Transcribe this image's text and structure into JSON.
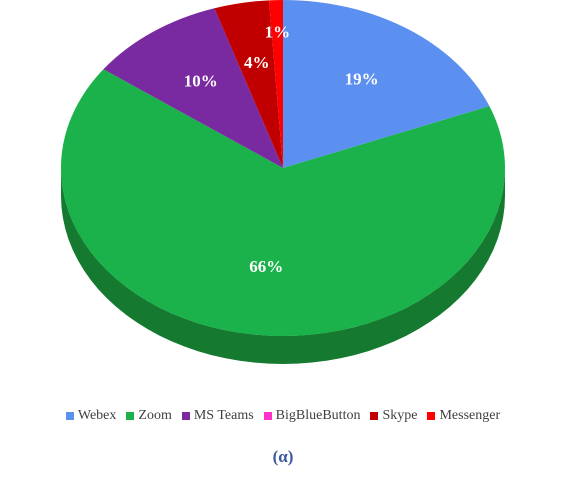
{
  "chart_data": {
    "type": "pie",
    "three_d": true,
    "start_angle_deg": 90,
    "direction": "clockwise",
    "slices": [
      {
        "label": "Webex",
        "value": 19,
        "data_label": "19%",
        "color": "#5b8ff0",
        "dark": "#3f6bc0"
      },
      {
        "label": "Zoom",
        "value": 66,
        "data_label": "66%",
        "color": "#1bb24b",
        "dark": "#157a30"
      },
      {
        "label": "MS Teams",
        "value": 10,
        "data_label": "10%",
        "color": "#7a2aa0",
        "dark": "#551a73"
      },
      {
        "label": "BigBlueButton",
        "value": 0,
        "data_label": "",
        "color": "#ff33cc",
        "dark": "#b0238d"
      },
      {
        "label": "Skype",
        "value": 4,
        "data_label": "4%",
        "color": "#c00000",
        "dark": "#860000"
      },
      {
        "label": "Messenger",
        "value": 1,
        "data_label": "1%",
        "color": "#ff0000",
        "dark": "#b30000"
      }
    ],
    "legend_position": "bottom",
    "caption": "(α)"
  }
}
